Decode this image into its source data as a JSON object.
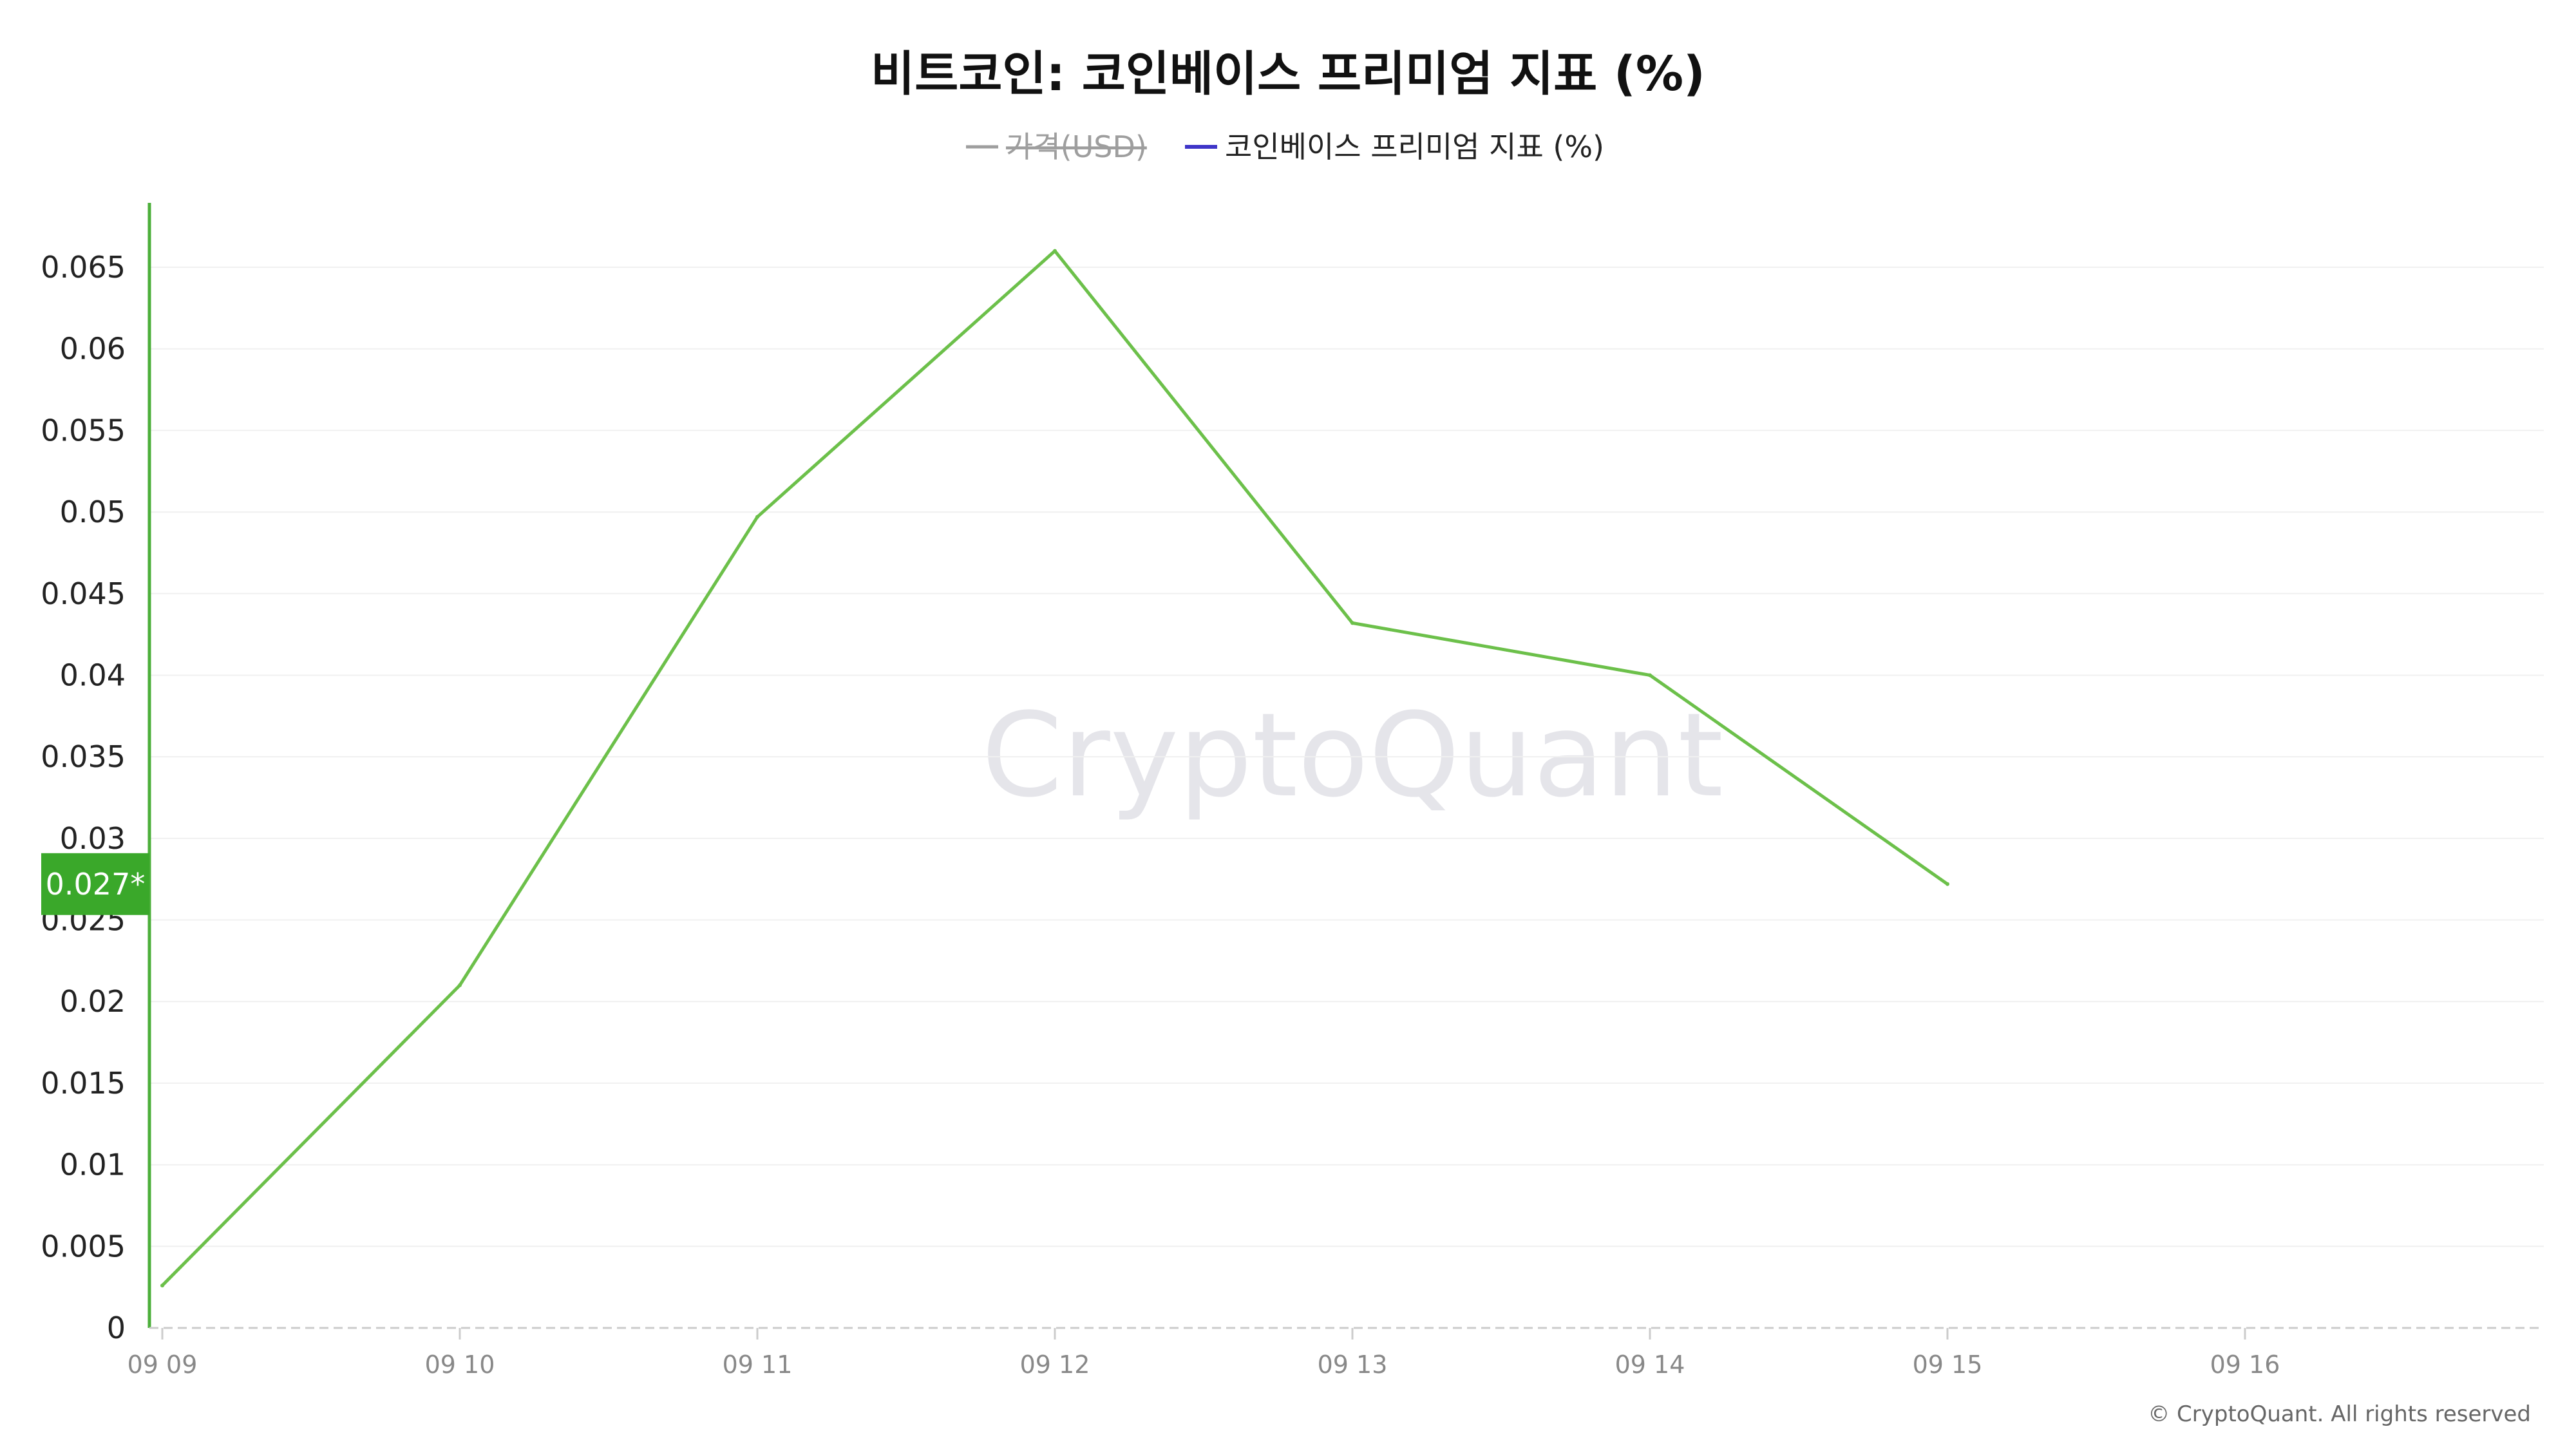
{
  "colors": {
    "series": "#6cc04a",
    "axis": "#4caf3a",
    "marker_bg": "#3aa82a",
    "legend_price": "#9e9e9e",
    "legend_premium": "#3f35c8",
    "grid": "#f0f0f0",
    "baseline": "#cccccc"
  },
  "watermark": "CryptoQuant",
  "copyright": "© CryptoQuant. All rights reserved",
  "chart_data": {
    "type": "line",
    "title": "비트코인: 코인베이스 프리미엄 지표 (%)",
    "legend": [
      {
        "name": "가격(USD)",
        "hidden": true
      },
      {
        "name": "코인베이스 프리미엄 지표 (%)",
        "hidden": false
      }
    ],
    "legend_position": "top-center",
    "x_ticks": [
      "09 09",
      "09 10",
      "09 11",
      "09 12",
      "09 13",
      "09 14",
      "09 15",
      "09 16"
    ],
    "x": [
      "09 09",
      "09 10",
      "09 11",
      "09 12",
      "09 13",
      "09 14",
      "09 15"
    ],
    "series": [
      {
        "name": "코인베이스 프리미엄 지표 (%)",
        "values": [
          0.0026,
          0.021,
          0.0497,
          0.066,
          0.0432,
          0.04,
          0.0272
        ]
      }
    ],
    "y_ticks": [
      "0",
      "0.005",
      "0.01",
      "0.015",
      "0.02",
      "0.025",
      "0.03",
      "0.035",
      "0.04",
      "0.045",
      "0.05",
      "0.055",
      "0.06",
      "0.065"
    ],
    "ylim": [
      0,
      0.069
    ],
    "grid": true,
    "current_value_label": "0.027*",
    "current_value": 0.0272
  }
}
